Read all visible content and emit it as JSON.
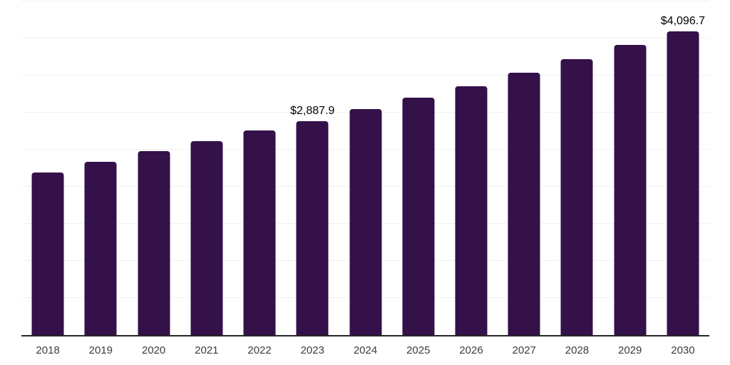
{
  "chart_data": {
    "type": "bar",
    "title": "",
    "xlabel": "",
    "ylabel": "",
    "categories": [
      "2018",
      "2019",
      "2020",
      "2021",
      "2022",
      "2023",
      "2024",
      "2025",
      "2026",
      "2027",
      "2028",
      "2029",
      "2030"
    ],
    "values": [
      2190,
      2335,
      2480,
      2615,
      2760,
      2887.9,
      3050,
      3205,
      3360,
      3540,
      3720,
      3915,
      4096.7
    ],
    "data_labels": {
      "2023": "$2,887.9",
      "2030": "$4,096.7"
    },
    "ylim": [
      0,
      4500
    ],
    "gridline_step": 500,
    "grid": true,
    "legend": false,
    "colors": {
      "bar": "#341149",
      "gridline": "#f1f1f2",
      "axis_line": "#262626",
      "tick_label": "#3d3d3d",
      "data_label": "#000000",
      "background": "#ffffff"
    }
  }
}
